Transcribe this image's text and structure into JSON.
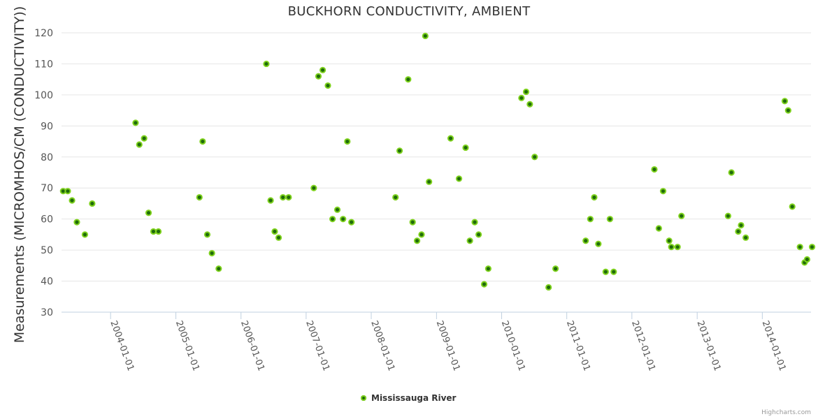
{
  "chart_data": {
    "type": "scatter",
    "title": "BUCKHORN CONDUCTIVITY, AMBIENT",
    "ylabel": "Measurements (MICROMHOS/CM (CONDUCTIVITY))",
    "xlabel": "",
    "ylim": [
      30,
      120
    ],
    "xlim": [
      "2003-04-01",
      "2014-10-01"
    ],
    "yticks": [
      "30",
      "40",
      "50",
      "60",
      "70",
      "80",
      "90",
      "100",
      "110",
      "120"
    ],
    "xticks": [
      "2004-01-01",
      "2005-01-01",
      "2006-01-01",
      "2007-01-01",
      "2008-01-01",
      "2009-01-01",
      "2010-01-01",
      "2011-01-01",
      "2012-01-01",
      "2013-01-01",
      "2014-01-01"
    ],
    "grid": true,
    "legend_position": "bottom",
    "colors": {
      "fill": "#1f6b0a",
      "stroke": "#7fd21e"
    },
    "series": [
      {
        "name": "Mississauga River",
        "points": [
          [
            "2003-04-10",
            69
          ],
          [
            "2003-05-06",
            69
          ],
          [
            "2003-05-30",
            66
          ],
          [
            "2003-06-26",
            59
          ],
          [
            "2003-08-10",
            55
          ],
          [
            "2003-09-20",
            65
          ],
          [
            "2004-05-20",
            91
          ],
          [
            "2004-06-10",
            84
          ],
          [
            "2004-07-07",
            86
          ],
          [
            "2004-08-01",
            62
          ],
          [
            "2004-08-28",
            56
          ],
          [
            "2004-09-25",
            56
          ],
          [
            "2005-05-13",
            67
          ],
          [
            "2005-05-31",
            85
          ],
          [
            "2005-06-26",
            55
          ],
          [
            "2005-07-22",
            49
          ],
          [
            "2005-08-29",
            44
          ],
          [
            "2006-05-23",
            110
          ],
          [
            "2006-06-16",
            66
          ],
          [
            "2006-07-09",
            56
          ],
          [
            "2006-07-31",
            54
          ],
          [
            "2006-08-24",
            67
          ],
          [
            "2006-09-25",
            67
          ],
          [
            "2007-02-13",
            70
          ],
          [
            "2007-03-11",
            106
          ],
          [
            "2007-04-04",
            108
          ],
          [
            "2007-05-03",
            103
          ],
          [
            "2007-05-29",
            60
          ],
          [
            "2007-06-25",
            63
          ],
          [
            "2007-07-27",
            60
          ],
          [
            "2007-08-20",
            85
          ],
          [
            "2007-09-12",
            59
          ],
          [
            "2008-05-16",
            67
          ],
          [
            "2008-06-08",
            82
          ],
          [
            "2008-07-26",
            105
          ],
          [
            "2008-08-20",
            59
          ],
          [
            "2008-09-14",
            53
          ],
          [
            "2008-10-09",
            55
          ],
          [
            "2008-10-30",
            119
          ],
          [
            "2008-11-20",
            72
          ],
          [
            "2009-03-21",
            86
          ],
          [
            "2009-05-07",
            73
          ],
          [
            "2009-06-13",
            83
          ],
          [
            "2009-07-07",
            53
          ],
          [
            "2009-08-03",
            59
          ],
          [
            "2009-08-25",
            55
          ],
          [
            "2009-09-25",
            39
          ],
          [
            "2009-10-18",
            44
          ],
          [
            "2010-04-22",
            99
          ],
          [
            "2010-05-18",
            101
          ],
          [
            "2010-06-08",
            97
          ],
          [
            "2010-07-05",
            80
          ],
          [
            "2010-09-21",
            38
          ],
          [
            "2010-10-30",
            44
          ],
          [
            "2011-04-17",
            53
          ],
          [
            "2011-05-13",
            60
          ],
          [
            "2011-06-04",
            67
          ],
          [
            "2011-06-27",
            52
          ],
          [
            "2011-08-07",
            43
          ],
          [
            "2011-08-31",
            60
          ],
          [
            "2011-09-21",
            43
          ],
          [
            "2012-05-06",
            76
          ],
          [
            "2012-05-31",
            57
          ],
          [
            "2012-06-24",
            69
          ],
          [
            "2012-07-28",
            53
          ],
          [
            "2012-08-09",
            51
          ],
          [
            "2012-09-13",
            51
          ],
          [
            "2012-10-05",
            61
          ],
          [
            "2013-06-23",
            61
          ],
          [
            "2013-07-12",
            75
          ],
          [
            "2013-08-19",
            56
          ],
          [
            "2013-09-04",
            58
          ],
          [
            "2013-09-30",
            54
          ],
          [
            "2014-05-07",
            98
          ],
          [
            "2014-05-26",
            95
          ],
          [
            "2014-06-18",
            64
          ],
          [
            "2014-07-31",
            51
          ],
          [
            "2014-08-26",
            46
          ],
          [
            "2014-09-09",
            47
          ],
          [
            "2014-10-07",
            51
          ]
        ]
      }
    ],
    "credits": "Highcharts.com"
  }
}
